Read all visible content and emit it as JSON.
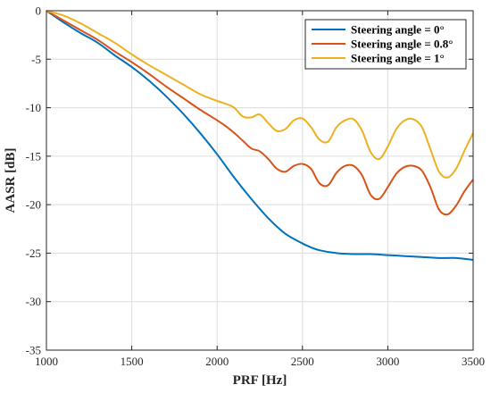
{
  "chart_data": {
    "type": "line",
    "xlabel": "PRF [Hz]",
    "ylabel": "AASR [dB]",
    "xlim": [
      1000,
      3500
    ],
    "ylim": [
      -35,
      0
    ],
    "xticks": [
      1000,
      1500,
      2000,
      2500,
      3000,
      3500
    ],
    "yticks": [
      0,
      -5,
      -10,
      -15,
      -20,
      -25,
      -30,
      -35
    ],
    "grid": true,
    "legend_position": "top-right",
    "series": [
      {
        "name": "Steering angle = 0°",
        "color": "#0072BD",
        "x": [
          1000,
          1100,
          1200,
          1300,
          1400,
          1500,
          1600,
          1700,
          1800,
          1900,
          2000,
          2100,
          2200,
          2300,
          2400,
          2500,
          2550,
          2600,
          2700,
          2800,
          2900,
          3000,
          3100,
          3200,
          3300,
          3400,
          3500
        ],
        "y": [
          0,
          -1.2,
          -2.3,
          -3.3,
          -4.6,
          -5.8,
          -7.2,
          -8.8,
          -10.6,
          -12.6,
          -14.8,
          -17.2,
          -19.4,
          -21.4,
          -23.0,
          -24.0,
          -24.4,
          -24.7,
          -25.0,
          -25.1,
          -25.1,
          -25.2,
          -25.3,
          -25.4,
          -25.5,
          -25.5,
          -25.7
        ]
      },
      {
        "name": "Steering angle = 0.8°",
        "color": "#D95319",
        "x": [
          1000,
          1100,
          1200,
          1300,
          1400,
          1500,
          1600,
          1700,
          1800,
          1900,
          2000,
          2050,
          2100,
          2150,
          2200,
          2250,
          2300,
          2350,
          2400,
          2450,
          2500,
          2550,
          2600,
          2650,
          2700,
          2750,
          2800,
          2850,
          2900,
          2950,
          3000,
          3050,
          3100,
          3150,
          3200,
          3250,
          3300,
          3350,
          3400,
          3450,
          3500
        ],
        "y": [
          0,
          -1.0,
          -2.0,
          -3.0,
          -4.2,
          -5.3,
          -6.5,
          -7.8,
          -9.0,
          -10.2,
          -11.3,
          -11.9,
          -12.6,
          -13.4,
          -14.2,
          -14.5,
          -15.3,
          -16.3,
          -16.6,
          -16.0,
          -15.8,
          -16.3,
          -17.8,
          -18.0,
          -16.7,
          -16.0,
          -16.0,
          -17.0,
          -19.0,
          -19.4,
          -18.2,
          -16.8,
          -16.1,
          -16.0,
          -16.5,
          -18.2,
          -20.5,
          -21.0,
          -20.1,
          -18.6,
          -17.4
        ]
      },
      {
        "name": "Steering angle = 1°",
        "color": "#EDB120",
        "x": [
          1000,
          1100,
          1200,
          1300,
          1400,
          1500,
          1600,
          1700,
          1800,
          1900,
          2000,
          2050,
          2100,
          2150,
          2200,
          2250,
          2300,
          2350,
          2400,
          2450,
          2500,
          2550,
          2600,
          2650,
          2700,
          2750,
          2800,
          2850,
          2900,
          2950,
          3000,
          3050,
          3100,
          3150,
          3200,
          3250,
          3300,
          3350,
          3400,
          3450,
          3500
        ],
        "y": [
          0,
          -0.5,
          -1.3,
          -2.3,
          -3.3,
          -4.5,
          -5.6,
          -6.6,
          -7.6,
          -8.6,
          -9.3,
          -9.6,
          -10.0,
          -10.9,
          -11.0,
          -10.7,
          -11.6,
          -12.4,
          -12.2,
          -11.3,
          -11.1,
          -12.0,
          -13.3,
          -13.5,
          -12.0,
          -11.3,
          -11.2,
          -12.4,
          -14.6,
          -15.3,
          -14.0,
          -12.2,
          -11.3,
          -11.2,
          -12.0,
          -14.3,
          -16.6,
          -17.2,
          -16.3,
          -14.4,
          -12.6
        ]
      }
    ]
  }
}
